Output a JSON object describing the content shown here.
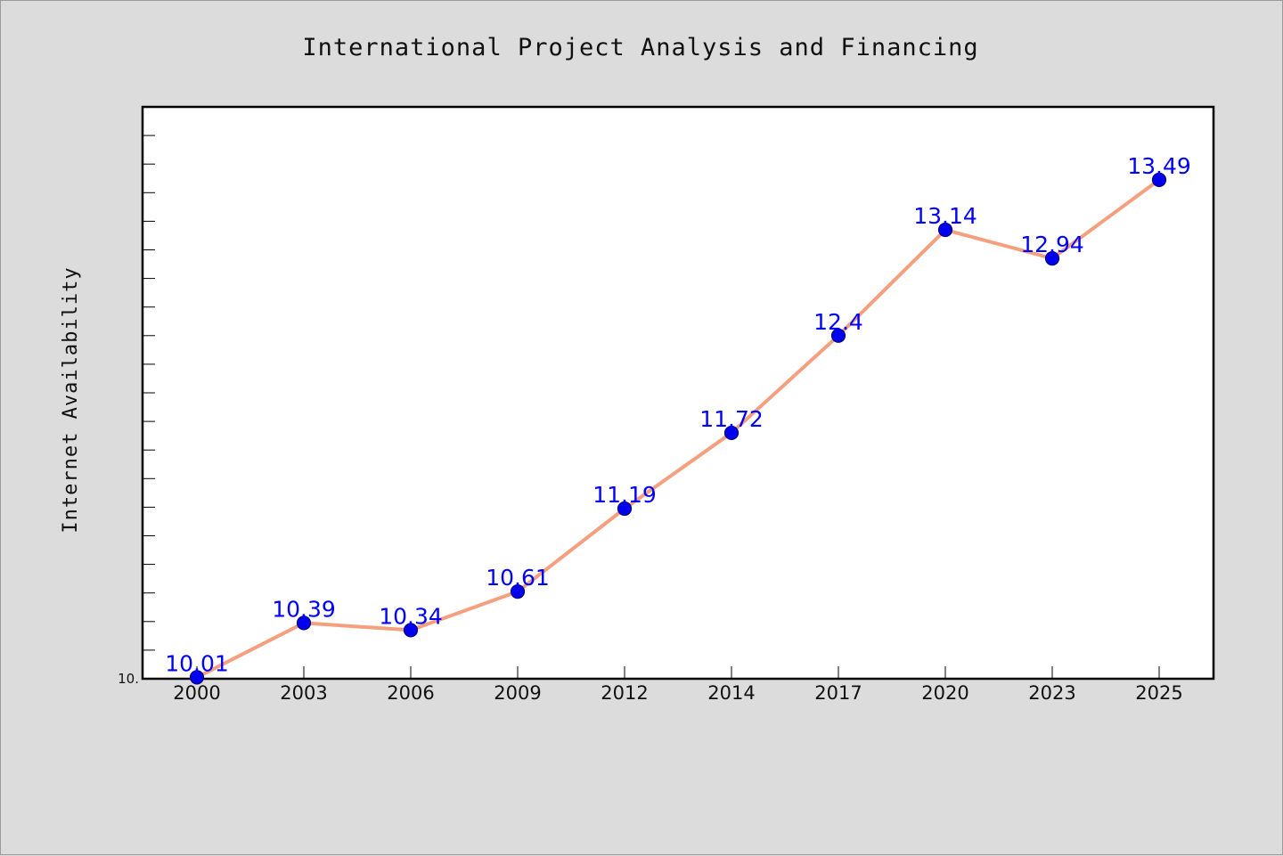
{
  "colors": {
    "background": "#dcdcdc",
    "plot_background": "#ffffff",
    "line": "#f4a07f",
    "marker": "#0000ee",
    "data_label": "#0000ff",
    "axis": "#000000"
  },
  "chart_data": {
    "type": "line",
    "title": "International Project Analysis and Financing",
    "xlabel": "",
    "ylabel": "Internet Availability",
    "categories": [
      "2000",
      "2003",
      "2006",
      "2009",
      "2012",
      "2014",
      "2017",
      "2020",
      "2023",
      "2025"
    ],
    "series": [
      {
        "values": [
          10.01,
          10.39,
          10.34,
          10.61,
          11.19,
          11.72,
          12.4,
          13.14,
          12.94,
          13.49
        ]
      }
    ],
    "data_labels": [
      "10.01",
      "10.39",
      "10.34",
      "10.61",
      "11.19",
      "11.72",
      "12.4",
      "13.14",
      "12.94",
      "13.49"
    ],
    "y_tick_labels": [
      "10."
    ],
    "ylim": [
      10.0,
      14.0
    ],
    "grid": false,
    "legend": "none"
  }
}
